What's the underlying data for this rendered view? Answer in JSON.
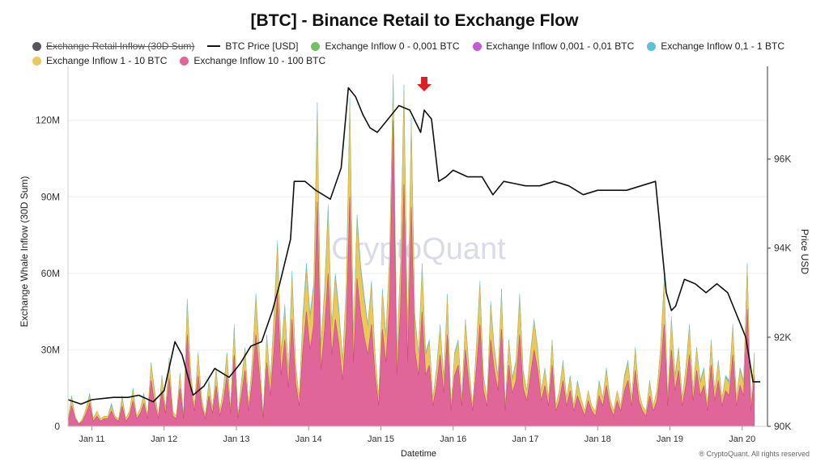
{
  "chart_data": {
    "type": "area",
    "title": "[BTC] - Binance Retail to Exchange Flow",
    "xlabel": "Datetime",
    "ylabel_left": "Exchange Whale Inflow (30D Sum)",
    "ylabel_right": "Price USD",
    "x_ticks": [
      "Jan 11",
      "Jan 12",
      "Jan 13",
      "Jan 14",
      "Jan 15",
      "Jan 16",
      "Jan 17",
      "Jan 18",
      "Jan 19",
      "Jan 20"
    ],
    "x_range": [
      10.67,
      20.35
    ],
    "y_left_ticks": [
      "0",
      "30M",
      "60M",
      "90M",
      "120M"
    ],
    "y_left_range": [
      0,
      138000000
    ],
    "y_right_ticks": [
      "90K",
      "92K",
      "94K",
      "96K"
    ],
    "y_right_range": [
      90000,
      97900
    ],
    "legend": [
      {
        "name": "Exchange Retail Inflow (30D Sum)",
        "color": "#55555e",
        "marker": "dot",
        "hidden": true
      },
      {
        "name": "BTC Price [USD]",
        "color": "#111111",
        "marker": "line"
      },
      {
        "name": "Exchange Inflow 0 - 0,001 BTC",
        "color": "#72c060",
        "marker": "dot"
      },
      {
        "name": "Exchange Inflow 0,001 - 0,01 BTC",
        "color": "#c45ad8",
        "marker": "dot"
      },
      {
        "name": "Exchange Inflow 0,1 - 1 BTC",
        "color": "#5bc0dc",
        "marker": "dot"
      },
      {
        "name": "Exchange Inflow 1 - 10 BTC",
        "color": "#e8c95a",
        "marker": "dot"
      },
      {
        "name": "Exchange Inflow 10 - 100 BTC",
        "color": "#e0669a",
        "marker": "dot"
      }
    ],
    "price_series": {
      "name": "BTC Price [USD]",
      "x": [
        10.67,
        10.85,
        11.0,
        11.3,
        11.5,
        11.65,
        11.85,
        12.0,
        12.15,
        12.25,
        12.4,
        12.55,
        12.7,
        12.9,
        13.05,
        13.2,
        13.35,
        13.5,
        13.6,
        13.75,
        13.8,
        13.95,
        14.1,
        14.3,
        14.45,
        14.55,
        14.65,
        14.75,
        14.85,
        14.95,
        15.1,
        15.25,
        15.4,
        15.55,
        15.6,
        15.7,
        15.8,
        15.9,
        16.0,
        16.2,
        16.4,
        16.55,
        16.7,
        16.85,
        17.0,
        17.2,
        17.4,
        17.6,
        17.8,
        18.0,
        18.2,
        18.4,
        18.6,
        18.8,
        18.95,
        19.02,
        19.08,
        19.2,
        19.35,
        19.5,
        19.65,
        19.8,
        19.95,
        20.05,
        20.15,
        20.25
      ],
      "values": [
        90600,
        90500,
        90600,
        90650,
        90650,
        90700,
        90550,
        90800,
        91900,
        91600,
        90700,
        90900,
        91300,
        91100,
        91400,
        91800,
        91900,
        92600,
        93200,
        94200,
        95500,
        95500,
        95300,
        95100,
        95800,
        97600,
        97400,
        97000,
        96700,
        96600,
        96900,
        97200,
        97100,
        96600,
        97100,
        96900,
        95500,
        95600,
        95750,
        95600,
        95600,
        95200,
        95500,
        95450,
        95400,
        95400,
        95500,
        95400,
        95200,
        95300,
        95300,
        95300,
        95400,
        95500,
        93000,
        92600,
        92700,
        93300,
        93200,
        93000,
        93200,
        93000,
        92400,
        92000,
        91000,
        91000
      ]
    },
    "inflow_series": {
      "note_units": "USD",
      "x_start": 10.67,
      "x_step": 0.05,
      "pink_10_100": [
        2,
        8,
        3,
        1,
        2,
        5,
        9,
        2,
        4,
        2,
        3,
        3,
        6,
        3,
        2,
        8,
        2,
        4,
        10,
        3,
        5,
        9,
        3,
        18,
        9,
        3,
        14,
        5,
        19,
        4,
        3,
        15,
        3,
        36,
        14,
        6,
        20,
        8,
        3,
        12,
        5,
        16,
        4,
        10,
        20,
        5,
        28,
        3,
        12,
        22,
        6,
        18,
        36,
        20,
        3,
        25,
        12,
        30,
        52,
        20,
        34,
        15,
        42,
        17,
        8,
        30,
        45,
        30,
        40,
        88,
        22,
        38,
        60,
        28,
        42,
        32,
        18,
        38,
        90,
        25,
        58,
        44,
        35,
        28,
        40,
        20,
        8,
        38,
        25,
        48,
        120,
        20,
        45,
        95,
        25,
        86,
        30,
        20,
        45,
        20,
        24,
        8,
        16,
        28,
        13,
        36,
        6,
        20,
        24,
        8,
        30,
        16,
        6,
        22,
        40,
        14,
        8,
        34,
        22,
        14,
        38,
        6,
        24,
        13,
        18,
        36,
        15,
        10,
        20,
        30,
        22,
        10,
        16,
        8,
        24,
        6,
        10,
        18,
        8,
        14,
        6,
        12,
        8,
        4,
        10,
        6,
        4,
        12,
        8,
        16,
        8,
        4,
        10,
        6,
        14,
        18,
        8,
        22,
        10,
        6,
        4,
        12,
        6,
        10,
        22,
        40,
        8,
        30,
        14,
        22,
        8,
        16,
        28,
        10,
        22,
        12,
        16,
        6,
        24,
        10,
        18,
        8,
        14,
        12,
        28,
        8,
        16,
        12,
        46,
        6,
        20
      ],
      "yellow_1_10": [
        1,
        3,
        1,
        0,
        1,
        2,
        3,
        1,
        2,
        1,
        1,
        1,
        2,
        1,
        1,
        3,
        1,
        2,
        4,
        1,
        2,
        3,
        1,
        6,
        4,
        1,
        5,
        2,
        7,
        2,
        1,
        5,
        1,
        12,
        6,
        2,
        8,
        3,
        1,
        5,
        2,
        6,
        2,
        4,
        8,
        2,
        10,
        1,
        5,
        8,
        2,
        7,
        14,
        8,
        1,
        10,
        5,
        12,
        18,
        8,
        12,
        6,
        16,
        7,
        3,
        12,
        16,
        12,
        14,
        35,
        9,
        14,
        24,
        11,
        16,
        12,
        7,
        15,
        35,
        10,
        22,
        17,
        14,
        11,
        15,
        8,
        3,
        14,
        10,
        18,
        15,
        8,
        17,
        35,
        10,
        32,
        12,
        8,
        17,
        8,
        9,
        3,
        6,
        11,
        5,
        14,
        2,
        8,
        9,
        3,
        11,
        6,
        2,
        8,
        15,
        5,
        3,
        13,
        8,
        5,
        14,
        2,
        9,
        5,
        7,
        14,
        6,
        4,
        8,
        11,
        8,
        4,
        6,
        3,
        9,
        2,
        4,
        7,
        3,
        5,
        2,
        5,
        3,
        2,
        4,
        2,
        2,
        5,
        3,
        6,
        3,
        2,
        4,
        2,
        5,
        7,
        3,
        8,
        4,
        2,
        2,
        5,
        2,
        4,
        8,
        16,
        3,
        12,
        5,
        8,
        3,
        6,
        11,
        4,
        8,
        5,
        6,
        2,
        9,
        4,
        7,
        3,
        5,
        5,
        11,
        3,
        6,
        5,
        16,
        2,
        8
      ],
      "cyan_0_1_1": [
        0,
        1,
        0,
        0,
        0,
        0,
        1,
        0,
        0,
        0,
        0,
        0,
        1,
        0,
        0,
        1,
        0,
        0,
        1,
        0,
        0,
        1,
        0,
        1,
        1,
        0,
        1,
        0,
        1,
        0,
        0,
        1,
        0,
        2,
        1,
        0,
        1,
        0,
        0,
        1,
        0,
        1,
        0,
        1,
        1,
        0,
        2,
        0,
        1,
        1,
        0,
        1,
        2,
        1,
        0,
        1,
        1,
        2,
        3,
        1,
        2,
        1,
        3,
        1,
        0,
        2,
        3,
        2,
        2,
        4,
        1,
        2,
        3,
        1,
        2,
        2,
        1,
        2,
        4,
        1,
        3,
        2,
        2,
        1,
        2,
        1,
        0,
        2,
        1,
        2,
        3,
        1,
        2,
        4,
        1,
        3,
        2,
        1,
        2,
        1,
        1,
        0,
        1,
        1,
        1,
        2,
        0,
        1,
        1,
        0,
        1,
        1,
        0,
        1,
        2,
        1,
        0,
        2,
        1,
        1,
        2,
        0,
        1,
        1,
        1,
        2,
        1,
        0,
        1,
        1,
        1,
        0,
        1,
        0,
        1,
        0,
        0,
        1,
        0,
        1,
        0,
        1,
        0,
        0,
        0,
        0,
        0,
        1,
        0,
        1,
        0,
        0,
        0,
        0,
        1,
        1,
        0,
        1,
        0,
        0,
        0,
        1,
        0,
        0,
        1,
        2,
        0,
        1,
        1,
        1,
        0,
        1,
        1,
        0,
        1,
        1,
        1,
        0,
        1,
        0,
        1,
        0,
        1,
        1,
        1,
        0,
        1,
        1,
        2,
        0,
        1
      ]
    },
    "annotation": {
      "type": "arrow-down",
      "color": "#e02020",
      "x": 15.6
    },
    "watermark": "CryptoQuant",
    "credit": "® CryptoQuant. All rights reserved"
  }
}
